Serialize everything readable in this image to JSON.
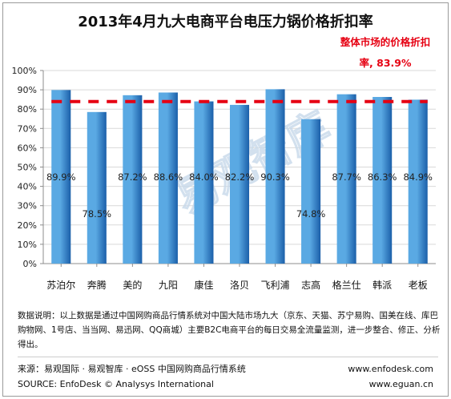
{
  "title": "2013年4月九大电商平台电压力锅价格折扣率",
  "annotation": "整体市场的价格折扣率, 83.9%",
  "colors": {
    "bar_light": "#5aa9e3",
    "bar_dark": "#1b5fa9",
    "reference_line": "#e60012",
    "grid": "#d9d9d9",
    "axis": "#8c8c8c",
    "watermark": "#c7d9ea"
  },
  "watermark_text": "易观智库",
  "chart_data": {
    "type": "bar",
    "title": "2013年4月九大电商平台电压力锅价格折扣率",
    "categories": [
      "苏泊尔",
      "奔腾",
      "美的",
      "九阳",
      "康佳",
      "洛贝",
      "飞利浦",
      "志高",
      "格兰仕",
      "韩派",
      "老板"
    ],
    "values": [
      89.9,
      78.5,
      87.2,
      88.6,
      84.0,
      82.2,
      90.3,
      74.8,
      87.7,
      86.3,
      84.9
    ],
    "value_labels": [
      "89.9%",
      "78.5%",
      "87.2%",
      "88.6%",
      "84.0%",
      "82.2%",
      "90.3%",
      "74.8%",
      "87.7%",
      "86.3%",
      "84.9%"
    ],
    "reference_value": 83.9,
    "ylim": [
      0,
      100
    ],
    "yticks": [
      "0%",
      "10%",
      "20%",
      "30%",
      "40%",
      "50%",
      "60%",
      "70%",
      "80%",
      "90%",
      "100%"
    ],
    "grid": true
  },
  "notes": "数据说明：以上数据是通过中国网购商品行情系统对中国大陆市场九大（京东、天猫、苏宁易购、国美在线、库巴购物网、1号店、当当网、易迅网、QQ商城）主要B2C电商平台的每日交易全流量监测，进一步整合、修正、分析得出。",
  "footer": {
    "source_cn": "来源：易观国际 · 易观智库 · eOSS 中国网购商品行情系统",
    "source_en": "SOURCE: EnfoDesk © Analysys International",
    "url1": "www.enfodesk.com",
    "url2": "www.eguan.cn"
  }
}
